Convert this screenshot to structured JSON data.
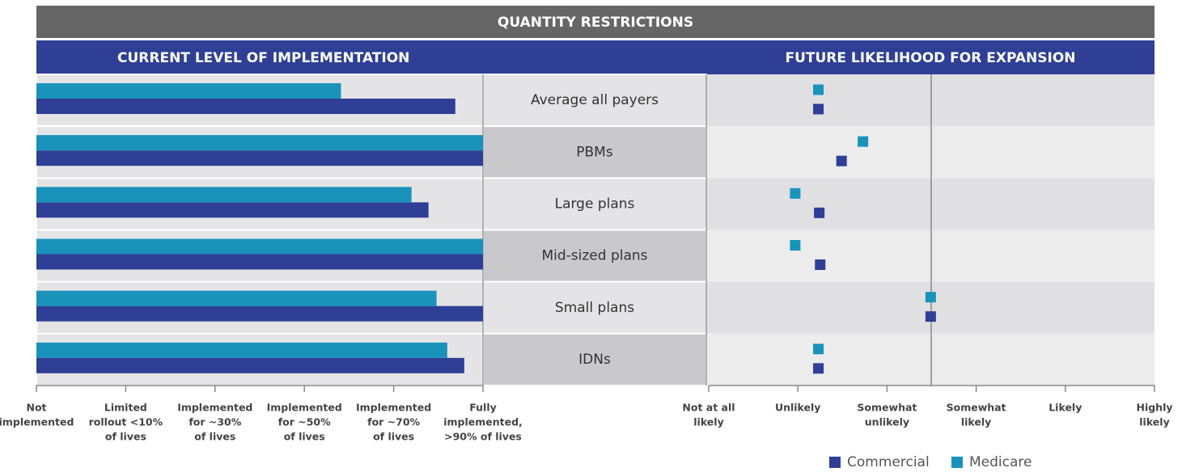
{
  "title": "QUANTITY RESTRICTIONS",
  "chart_data": [
    {
      "type": "hbar",
      "title": "CURRENT LEVEL OF IMPLEMENTATION",
      "categories": [
        "Average all payers",
        "PBMs",
        "Large plans",
        "Mid-sized plans",
        "Small plans",
        "IDNs"
      ],
      "series": [
        {
          "name": "Commercial",
          "color": "#2e3f95",
          "values": [
            4.69,
            5,
            4.39,
            5,
            5,
            4.79
          ]
        },
        {
          "name": "Medicare",
          "color": "#1a93bb",
          "values": [
            3.41,
            5,
            4.2,
            5,
            4.48,
            4.6
          ]
        }
      ],
      "xlim": [
        0,
        5
      ],
      "xticks": [
        {
          "value": 0,
          "label": [
            "Not",
            "implemented"
          ]
        },
        {
          "value": 1,
          "label": [
            "Limited",
            "rollout <10%",
            "of lives"
          ]
        },
        {
          "value": 2,
          "label": [
            "Implemented",
            "for ~30%",
            "of lives"
          ]
        },
        {
          "value": 3,
          "label": [
            "Implemented",
            "for ~50%",
            "of lives"
          ]
        },
        {
          "value": 4,
          "label": [
            "Implemented",
            "for ~70%",
            "of lives"
          ]
        },
        {
          "value": 5,
          "label": [
            "Fully",
            "implemented,",
            ">90% of lives"
          ]
        }
      ]
    },
    {
      "type": "dot",
      "title": "FUTURE LIKELIHOOD FOR EXPANSION",
      "series": [
        {
          "values": [
            1.23,
            1.49,
            1.24,
            1.25,
            2.49,
            1.23
          ]
        },
        {
          "values": [
            1.23,
            1.73,
            0.97,
            0.97,
            2.49,
            1.23
          ]
        }
      ],
      "xlim": [
        0,
        5
      ],
      "xticks": [
        {
          "value": 0,
          "label": [
            "Not at all",
            "likely"
          ]
        },
        {
          "value": 1,
          "label": [
            "Unlikely"
          ]
        },
        {
          "value": 2,
          "label": [
            "Somewhat",
            "unlikely"
          ]
        },
        {
          "value": 3,
          "label": [
            "Somewhat",
            "likely"
          ]
        },
        {
          "value": 4,
          "label": [
            "Likely"
          ]
        },
        {
          "value": 5,
          "label": [
            "Highly",
            "likely"
          ]
        }
      ]
    }
  ]
}
